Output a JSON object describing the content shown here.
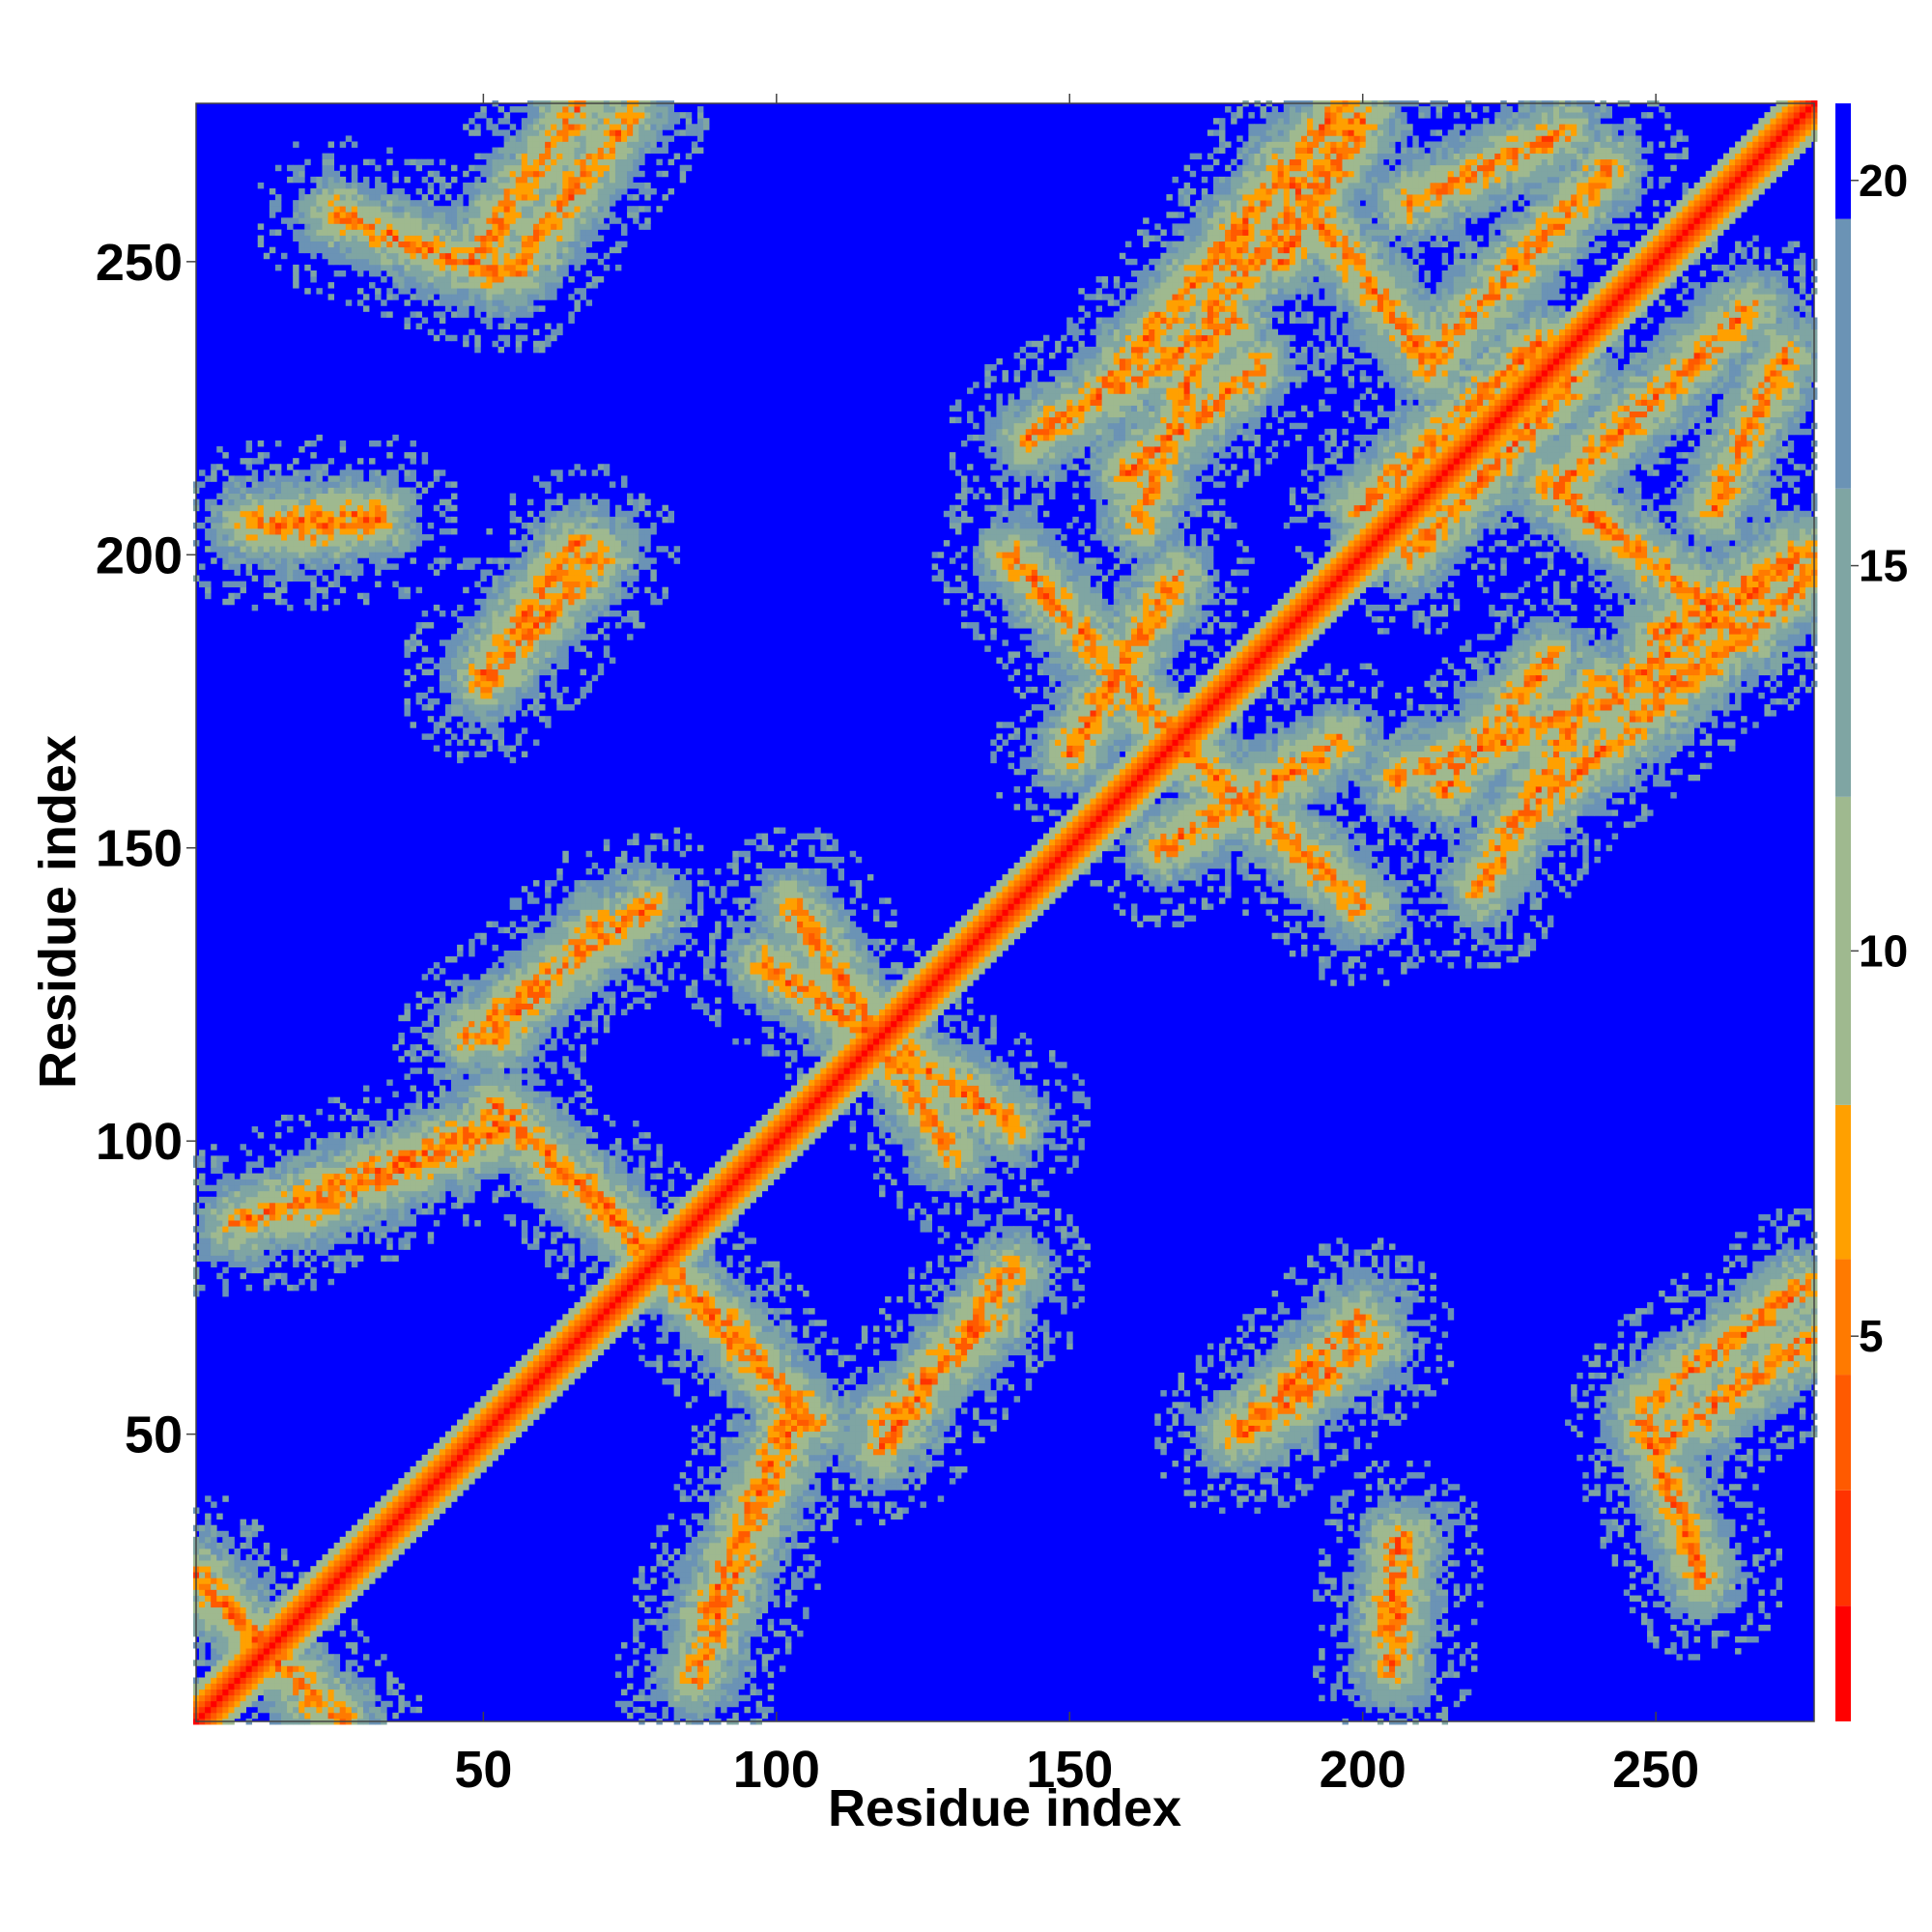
{
  "chart_data": {
    "type": "heatmap",
    "title": "",
    "xlabel": "Residue index",
    "ylabel": "Residue index",
    "xlim": [
      1,
      277
    ],
    "ylim": [
      1,
      277
    ],
    "x_ticks": [
      50,
      100,
      150,
      200,
      250
    ],
    "y_ticks": [
      50,
      100,
      150,
      200,
      250
    ],
    "colorbar": {
      "ticks": [
        5,
        10,
        15,
        20
      ],
      "range": [
        0,
        21
      ],
      "colors": [
        "#ff0000",
        "#ff3300",
        "#ff5a00",
        "#ff7a00",
        "#ffa000",
        "#9fb98f",
        "#7fa5a3",
        "#6b93b5",
        "#0000ff"
      ],
      "bounds": [
        0,
        1.5,
        3,
        4.5,
        6,
        8,
        12,
        16,
        19.5,
        21
      ]
    },
    "diagonal_band": {
      "from": 1,
      "to": 277,
      "half_width_residues": 6
    },
    "contact_bands": [
      {
        "x1": 1,
        "y1": 26,
        "x2": 22,
        "y2": 4
      },
      {
        "x1": 8,
        "y1": 86,
        "x2": 55,
        "y2": 104
      },
      {
        "x1": 52,
        "y1": 106,
        "x2": 93,
        "y2": 67
      },
      {
        "x1": 88,
        "y1": 18,
        "x2": 103,
        "y2": 56
      },
      {
        "x1": 48,
        "y1": 118,
        "x2": 78,
        "y2": 140
      },
      {
        "x1": 103,
        "y1": 140,
        "x2": 130,
        "y2": 98
      },
      {
        "x1": 118,
        "y1": 52,
        "x2": 137,
        "y2": 70
      },
      {
        "x1": 50,
        "y1": 178,
        "x2": 70,
        "y2": 200
      },
      {
        "x1": 10,
        "y1": 205,
        "x2": 32,
        "y2": 207
      },
      {
        "x1": 25,
        "y1": 258,
        "x2": 52,
        "y2": 248
      },
      {
        "x1": 55,
        "y1": 248,
        "x2": 75,
        "y2": 275
      },
      {
        "x1": 140,
        "y1": 200,
        "x2": 170,
        "y2": 166
      },
      {
        "x1": 143,
        "y1": 220,
        "x2": 178,
        "y2": 240
      },
      {
        "x1": 166,
        "y1": 150,
        "x2": 196,
        "y2": 168
      },
      {
        "x1": 162,
        "y1": 206,
        "x2": 180,
        "y2": 256
      },
      {
        "x1": 178,
        "y1": 245,
        "x2": 200,
        "y2": 275
      },
      {
        "x1": 186,
        "y1": 266,
        "x2": 212,
        "y2": 232
      },
      {
        "x1": 208,
        "y1": 200,
        "x2": 236,
        "y2": 230
      },
      {
        "x1": 214,
        "y1": 160,
        "x2": 232,
        "y2": 182
      },
      {
        "x1": 226,
        "y1": 154,
        "x2": 276,
        "y2": 196
      },
      {
        "x1": 234,
        "y1": 212,
        "x2": 266,
        "y2": 242
      },
      {
        "x1": 208,
        "y1": 260,
        "x2": 234,
        "y2": 272
      },
      {
        "x1": 250,
        "y1": 186,
        "x2": 274,
        "y2": 200
      },
      {
        "x1": 250,
        "y1": 48,
        "x2": 276,
        "y2": 66
      },
      {
        "x1": 180,
        "y1": 50,
        "x2": 202,
        "y2": 66
      },
      {
        "x1": 204,
        "y1": 16,
        "x2": 206,
        "y2": 32
      }
    ]
  }
}
